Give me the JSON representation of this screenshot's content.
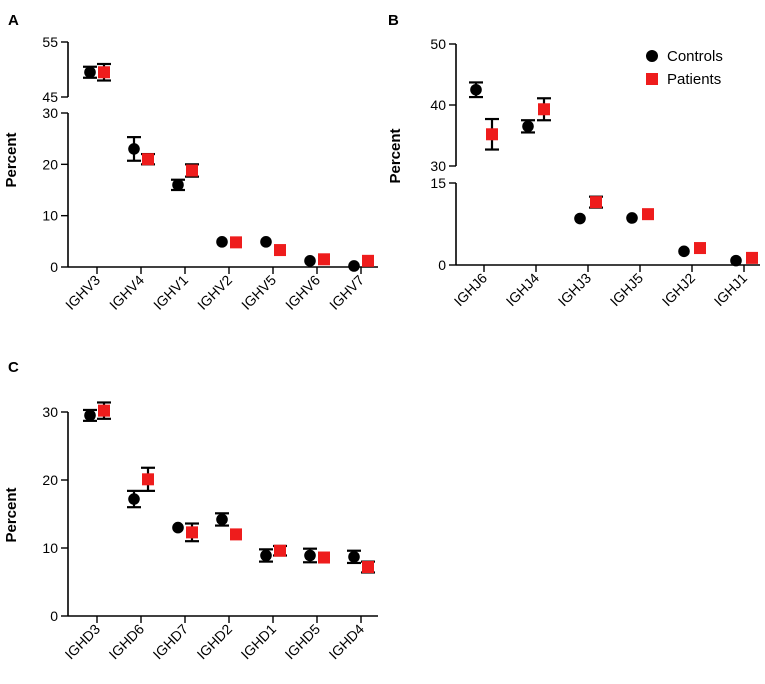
{
  "legend": {
    "controls_label": "Controls",
    "patients_label": "Patients",
    "controls_color": "#000000",
    "patients_color": "#ee1c1c",
    "placement": "top-right of panel B"
  },
  "chart_data": [
    {
      "panel": "A",
      "type": "scatter",
      "ylabel": "Percent",
      "broken_axis": true,
      "lower_range": [
        0,
        30
      ],
      "upper_range": [
        45,
        55
      ],
      "lower_ticks": [
        "0",
        "10",
        "20",
        "30"
      ],
      "upper_ticks": [
        "45",
        "55"
      ],
      "categories": [
        "IGHV3",
        "IGHV4",
        "IGHV1",
        "IGHV2",
        "IGHV5",
        "IGHV6",
        "IGHV7"
      ],
      "series": [
        {
          "name": "Controls",
          "values": [
            49.5,
            23,
            16,
            4.9,
            4.9,
            1.2,
            0.2
          ],
          "errors": [
            1.0,
            2.3,
            1.0,
            0,
            0,
            0,
            0
          ]
        },
        {
          "name": "Patients",
          "values": [
            49.5,
            21,
            18.8,
            4.8,
            3.3,
            1.5,
            1.2
          ],
          "errors": [
            1.5,
            1.0,
            1.2,
            0,
            0,
            0,
            0
          ]
        }
      ]
    },
    {
      "panel": "B",
      "type": "scatter",
      "ylabel": "Percent",
      "broken_axis": true,
      "lower_range": [
        0,
        15
      ],
      "upper_range": [
        30,
        50
      ],
      "lower_ticks": [
        "0",
        "15"
      ],
      "upper_ticks": [
        "30",
        "40",
        "50"
      ],
      "categories": [
        "IGHJ6",
        "IGHJ4",
        "IGHJ3",
        "IGHJ5",
        "IGHJ2",
        "IGHJ1"
      ],
      "series": [
        {
          "name": "Controls",
          "values": [
            42.5,
            36.5,
            8.5,
            8.6,
            2.5,
            0.8
          ],
          "errors": [
            1.2,
            1.0,
            0,
            0,
            0,
            0
          ]
        },
        {
          "name": "Patients",
          "values": [
            35.2,
            39.3,
            11.5,
            9.3,
            3.1,
            1.3
          ],
          "errors": [
            2.5,
            1.8,
            1.0,
            0,
            0,
            0
          ]
        }
      ]
    },
    {
      "panel": "C",
      "type": "scatter",
      "ylabel": "Percent",
      "broken_axis": false,
      "ylim": [
        0,
        30
      ],
      "ticks": [
        "0",
        "10",
        "20",
        "30"
      ],
      "categories": [
        "IGHD3",
        "IGHD6",
        "IGHD7",
        "IGHD2",
        "IGHD1",
        "IGHD5",
        "IGHD4"
      ],
      "series": [
        {
          "name": "Controls",
          "values": [
            29.5,
            17.2,
            13.0,
            14.2,
            8.9,
            8.9,
            8.7
          ],
          "errors": [
            0.8,
            1.2,
            0,
            0.9,
            0.9,
            1.0,
            0.9
          ]
        },
        {
          "name": "Patients",
          "values": [
            30.2,
            20.1,
            12.3,
            12.0,
            9.6,
            8.6,
            7.2
          ],
          "errors": [
            1.2,
            1.7,
            1.3,
            0,
            0.7,
            0,
            0.8
          ]
        }
      ]
    }
  ]
}
